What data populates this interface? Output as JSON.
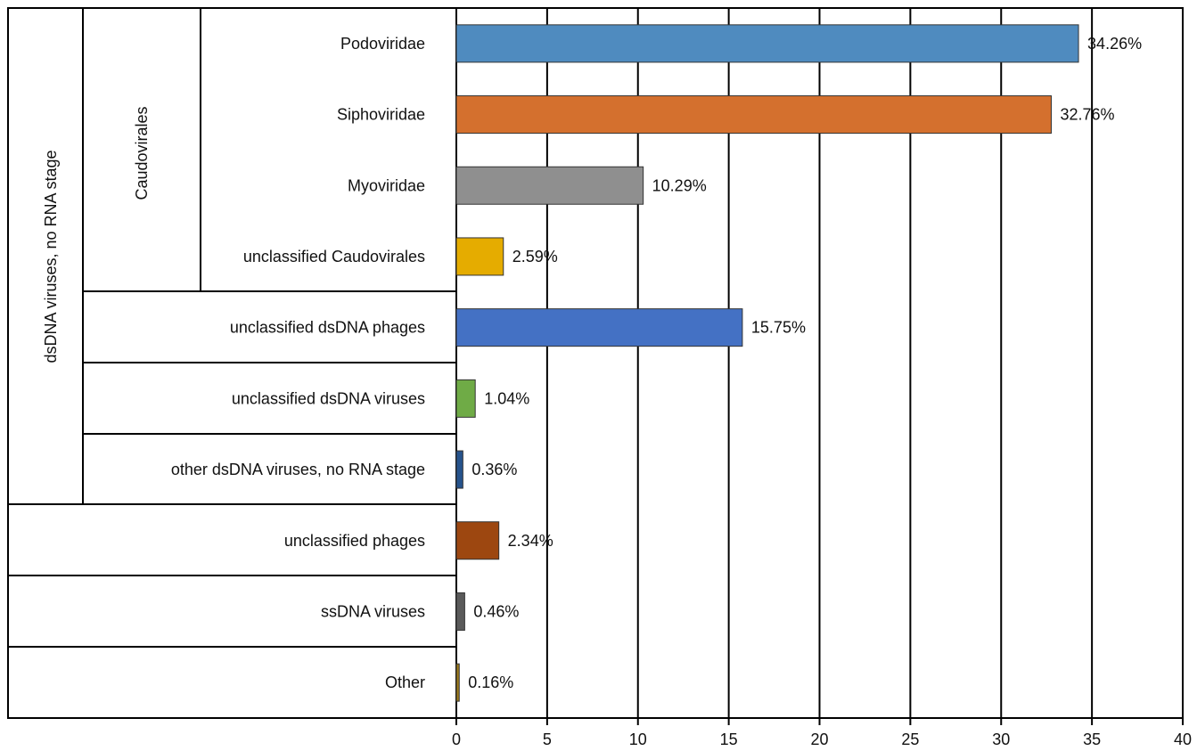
{
  "chart_data": {
    "type": "bar",
    "orientation": "horizontal",
    "categories": [
      "Podoviridae",
      "Siphoviridae",
      "Myoviridae",
      "unclassified Caudovirales",
      "unclassified dsDNA phages",
      "unclassified dsDNA viruses",
      "other dsDNA viruses, no RNA stage",
      "unclassified phages",
      "ssDNA viruses",
      "Other"
    ],
    "values": [
      34.26,
      32.76,
      10.29,
      2.59,
      15.75,
      1.04,
      0.36,
      2.34,
      0.46,
      0.16
    ],
    "value_labels": [
      "34.26%",
      "32.76%",
      "10.29%",
      "2.59%",
      "15.75%",
      "1.04%",
      "0.36%",
      "2.34%",
      "0.46%",
      "0.16%"
    ],
    "colors": [
      "#4f8bbf",
      "#d4702e",
      "#8f8f8f",
      "#e5ac00",
      "#4471c4",
      "#6fab46",
      "#26538c",
      "#9d4710",
      "#5a5a5a",
      "#9c7a1a"
    ],
    "group_labels": {
      "level1": "dsDNA viruses,  no RNA stage",
      "level2": "Caudovirales"
    },
    "xlim": [
      0,
      40
    ],
    "xticks": [
      "0",
      "5",
      "10",
      "15",
      "20",
      "25",
      "30",
      "35",
      "40"
    ],
    "grid": true,
    "title": "",
    "xlabel": "",
    "ylabel": ""
  }
}
